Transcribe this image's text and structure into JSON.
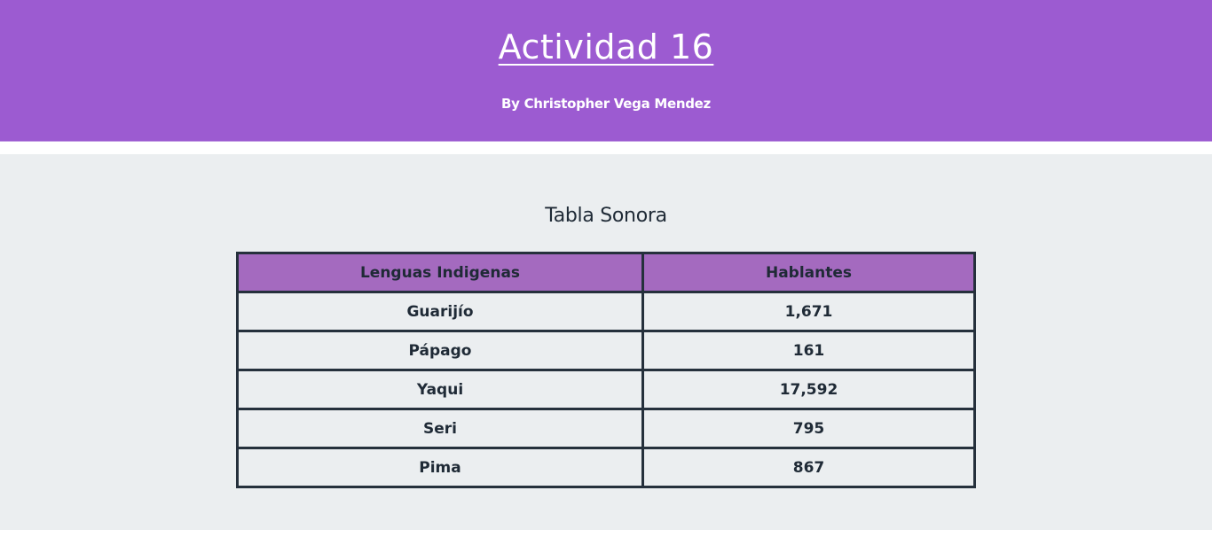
{
  "header": {
    "title": "Actividad 16",
    "byline": "By Christopher Vega Mendez"
  },
  "main": {
    "section_title": "Tabla Sonora",
    "table": {
      "columns": [
        "Lenguas Indigenas",
        "Hablantes"
      ],
      "rows": [
        [
          "Guarijío",
          "1,671"
        ],
        [
          "Pápago",
          "161"
        ],
        [
          "Yaqui",
          "17,592"
        ],
        [
          "Seri",
          "795"
        ],
        [
          "Pima",
          "867"
        ]
      ]
    }
  },
  "colors": {
    "header_bg": "#9c5bd1",
    "table_header_bg": "#a46abf",
    "content_bg": "#ebeef0",
    "border": "#25303c"
  }
}
